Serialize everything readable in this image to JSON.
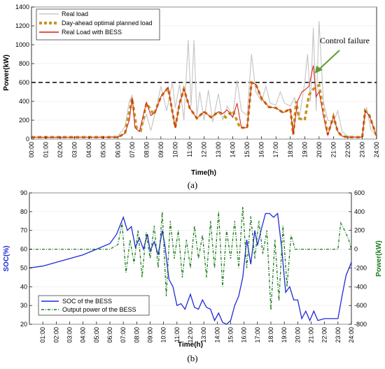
{
  "chart_data": [
    {
      "type": "line",
      "panel_label": "(a)",
      "xlabel": "Time(h)",
      "ylabel": "Power(kW)",
      "ylim": [
        0,
        1400
      ],
      "yticks": [
        0,
        200,
        400,
        600,
        800,
        1000,
        1200,
        1400
      ],
      "xticks": [
        "00:00",
        "01:00",
        "02:00",
        "03:00",
        "04:00",
        "05:00",
        "06:00",
        "07:00",
        "08:00",
        "09:00",
        "10:00",
        "11:00",
        "12:00",
        "13:00",
        "14:00",
        "15:00",
        "16:00",
        "17:00",
        "18:00",
        "19:00",
        "20:00",
        "21:00",
        "22:00",
        "23:00",
        "24:00"
      ],
      "legend_position": "top-left",
      "threshold": {
        "value": 600,
        "style": "dashed",
        "color": "#000000"
      },
      "annotation": {
        "text": "Control failure",
        "x": 19.6,
        "y": 780
      },
      "series": [
        {
          "name": "Real load",
          "color": "#c8c8c8",
          "style": "solid",
          "x": [
            0,
            1,
            2,
            3,
            4,
            5,
            6,
            6.5,
            6.8,
            7,
            7.2,
            7.5,
            8,
            8.3,
            8.6,
            9,
            9.4,
            9.8,
            10,
            10.3,
            10.6,
            10.9,
            11.1,
            11.3,
            11.5,
            11.7,
            12,
            12.3,
            12.6,
            13,
            13.3,
            13.6,
            14,
            14.3,
            14.6,
            15,
            15.3,
            15.6,
            16,
            16.3,
            16.6,
            17,
            17.3,
            17.6,
            18,
            18.3,
            18.6,
            19,
            19.2,
            19.4,
            19.6,
            19.8,
            20,
            20.3,
            20.6,
            21,
            21.3,
            21.6,
            22,
            22.3,
            22.6,
            23,
            23.3,
            23.6,
            24
          ],
          "values": [
            20,
            15,
            15,
            20,
            20,
            20,
            30,
            130,
            400,
            470,
            120,
            80,
            260,
            90,
            280,
            560,
            300,
            600,
            330,
            580,
            200,
            1050,
            350,
            1050,
            250,
            500,
            200,
            520,
            180,
            480,
            200,
            350,
            240,
            620,
            300,
            250,
            900,
            500,
            400,
            560,
            380,
            360,
            500,
            380,
            350,
            440,
            200,
            600,
            900,
            400,
            1180,
            300,
            1250,
            400,
            200,
            180,
            300,
            80,
            30,
            30,
            20,
            30,
            340,
            100,
            40
          ]
        },
        {
          "name": "Day-ahead optimal planned load",
          "color": "#c8961e",
          "style": "dashed",
          "x": [
            0,
            1,
            2,
            3,
            4,
            5,
            6,
            6.5,
            7,
            7.3,
            7.6,
            8,
            8.5,
            9,
            9.5,
            10,
            10.3,
            10.6,
            11,
            11.5,
            12,
            12.5,
            13,
            13.5,
            14,
            14.5,
            15,
            15.3,
            15.6,
            16,
            16.5,
            17,
            17.5,
            18,
            18.2,
            18.4,
            18.6,
            19,
            19.3,
            19.6,
            20,
            20.3,
            20.6,
            21,
            21.3,
            21.6,
            22,
            22.5,
            23,
            23.2,
            23.5,
            24
          ],
          "values": [
            20,
            20,
            20,
            20,
            20,
            20,
            20,
            60,
            430,
            120,
            90,
            380,
            260,
            450,
            540,
            120,
            380,
            530,
            330,
            220,
            290,
            230,
            290,
            230,
            300,
            120,
            120,
            600,
            580,
            430,
            340,
            330,
            280,
            320,
            50,
            400,
            220,
            200,
            470,
            530,
            570,
            300,
            50,
            240,
            80,
            30,
            20,
            20,
            20,
            300,
            250,
            30
          ]
        },
        {
          "name": "Real Load with BESS",
          "color": "#d11a1a",
          "style": "solid",
          "x": [
            0,
            1,
            2,
            3,
            4,
            5,
            6,
            6.5,
            6.8,
            7,
            7.2,
            7.5,
            8,
            8.3,
            8.6,
            9,
            9.5,
            10,
            10.3,
            10.6,
            11,
            11.5,
            12,
            12.5,
            13,
            13.3,
            13.6,
            14,
            14.3,
            14.6,
            15,
            15.3,
            15.6,
            16,
            16.5,
            17,
            17.5,
            18,
            18.2,
            18.5,
            18.8,
            19,
            19.3,
            19.6,
            19.8,
            20,
            20.3,
            20.6,
            21,
            21.3,
            21.6,
            22,
            22.5,
            23,
            23.2,
            23.5,
            24
          ],
          "values": [
            20,
            20,
            20,
            20,
            20,
            20,
            20,
            60,
            200,
            440,
            120,
            80,
            390,
            250,
            280,
            450,
            550,
            120,
            380,
            530,
            330,
            220,
            290,
            230,
            290,
            270,
            310,
            230,
            380,
            120,
            120,
            600,
            580,
            430,
            340,
            330,
            280,
            320,
            50,
            400,
            500,
            520,
            560,
            780,
            450,
            500,
            250,
            40,
            240,
            80,
            30,
            20,
            20,
            20,
            300,
            250,
            30
          ]
        }
      ]
    },
    {
      "type": "line",
      "panel_label": "(b)",
      "xlabel": "Time(h)",
      "ylabel": "SOC(%)",
      "y2label": "Power(kW)",
      "ylim": [
        20,
        90
      ],
      "y2lim": [
        -800,
        600
      ],
      "yticks": [
        20,
        30,
        40,
        50,
        60,
        70,
        80,
        90
      ],
      "y2ticks": [
        -800,
        -600,
        -400,
        -200,
        0,
        200,
        400,
        600
      ],
      "xticks": [
        "01:00",
        "02:00",
        "03:00",
        "04:00",
        "05:00",
        "06:00",
        "07:00",
        "08:00",
        "09:00",
        "10:00",
        "11:00",
        "12:00",
        "13:00",
        "14:00",
        "15:00",
        "16:00",
        "17:00",
        "18:00",
        "19:00",
        "20:00",
        "21:00",
        "22:00",
        "23:00",
        "24:00"
      ],
      "xlim": [
        0,
        24
      ],
      "legend_position": "bottom-left",
      "series": [
        {
          "name": "SOC of the BESS",
          "color": "#1f2bd6",
          "style": "solid",
          "axis": "left",
          "x": [
            0,
            1,
            2,
            3,
            4,
            5,
            6,
            6.5,
            7,
            7.3,
            7.6,
            7.9,
            8.2,
            8.5,
            8.8,
            9,
            9.3,
            9.6,
            9.9,
            10.1,
            10.4,
            10.7,
            11,
            11.3,
            11.6,
            12,
            12.3,
            12.6,
            12.9,
            13.2,
            13.5,
            13.8,
            14.1,
            14.4,
            14.7,
            15,
            15.3,
            15.6,
            15.9,
            16.2,
            16.5,
            16.8,
            17,
            17.3,
            17.6,
            17.9,
            18.2,
            18.5,
            18.8,
            19.1,
            19.4,
            19.7,
            20,
            20.3,
            20.6,
            20.9,
            21.2,
            21.5,
            22,
            22.5,
            23,
            23.3,
            23.6,
            24
          ],
          "values": [
            50,
            51,
            53,
            55,
            57,
            60,
            63,
            68,
            77,
            70,
            72,
            61,
            66,
            60,
            68,
            59,
            64,
            57,
            70,
            62,
            44,
            40,
            30,
            31,
            28,
            36,
            29,
            28,
            33,
            29,
            28,
            22,
            26,
            21,
            20,
            22,
            30,
            35,
            45,
            65,
            52,
            70,
            62,
            71,
            79,
            79,
            77,
            79,
            61,
            37,
            40,
            33,
            33,
            23,
            27,
            22,
            27,
            22,
            23,
            23,
            23,
            35,
            46,
            53
          ]
        },
        {
          "name": "Output power of the BESS",
          "color": "#1a7a1a",
          "style": "dashed",
          "axis": "right",
          "x": [
            0,
            1,
            2,
            3,
            4,
            5,
            6,
            6.6,
            6.9,
            7.2,
            7.5,
            7.8,
            8.1,
            8.4,
            8.7,
            9,
            9.3,
            9.6,
            9.9,
            10.2,
            10.5,
            10.8,
            11.1,
            11.4,
            11.7,
            12,
            12.3,
            12.6,
            12.9,
            13.2,
            13.5,
            13.8,
            14.1,
            14.4,
            14.7,
            15,
            15.3,
            15.6,
            15.9,
            16.2,
            16.5,
            16.8,
            17.1,
            17.4,
            17.7,
            18,
            18.3,
            18.6,
            18.9,
            19.2,
            19.5,
            19.8,
            20.1,
            20.4,
            20.7,
            21,
            21.3,
            21.6,
            22,
            22.5,
            23,
            23.2,
            23.5,
            23.8,
            24
          ],
          "values": [
            0,
            0,
            0,
            0,
            0,
            0,
            0,
            50,
            280,
            -250,
            100,
            -150,
            200,
            -300,
            180,
            -100,
            250,
            -200,
            400,
            -500,
            300,
            -100,
            200,
            -300,
            100,
            -200,
            250,
            -100,
            150,
            -300,
            300,
            -200,
            400,
            -400,
            200,
            -100,
            300,
            -200,
            450,
            -200,
            350,
            -100,
            300,
            -50,
            200,
            -650,
            100,
            -550,
            250,
            -400,
            150,
            0,
            0,
            0,
            0,
            0,
            0,
            0,
            0,
            0,
            0,
            280,
            200,
            100,
            0
          ]
        }
      ]
    }
  ]
}
